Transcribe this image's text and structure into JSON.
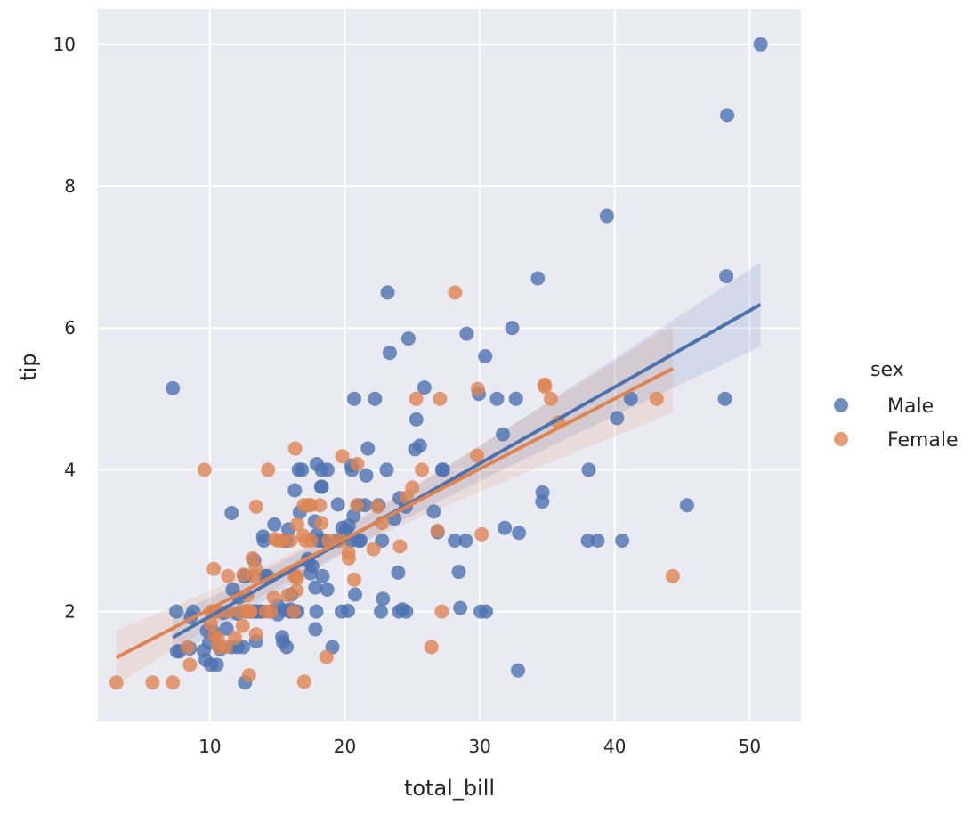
{
  "chart_data": {
    "type": "scatter",
    "xlabel": "total_bill",
    "ylabel": "tip",
    "xlim": [
      1.7,
      53.8
    ],
    "ylim": [
      0.45,
      10.5
    ],
    "xticks": [
      10,
      20,
      30,
      40,
      50
    ],
    "yticks": [
      2,
      4,
      6,
      8,
      10
    ],
    "grid": true,
    "legend": {
      "title": "sex",
      "placement": "right"
    },
    "regression": {
      "show_line": true,
      "confidence_interval": 95
    },
    "colors": {
      "background": "#eaeaf2",
      "grid": "#ffffff"
    },
    "series": [
      {
        "name": "Male",
        "color": "#4c72b0",
        "points": [
          [
            10.34,
            1.66
          ],
          [
            21.01,
            3.5
          ],
          [
            23.68,
            3.31
          ],
          [
            25.29,
            4.71
          ],
          [
            8.77,
            2.0
          ],
          [
            26.88,
            3.12
          ],
          [
            15.04,
            1.96
          ],
          [
            14.78,
            3.23
          ],
          [
            10.27,
            1.71
          ],
          [
            15.42,
            1.57
          ],
          [
            18.43,
            3.0
          ],
          [
            21.58,
            3.92
          ],
          [
            16.29,
            3.71
          ],
          [
            20.65,
            3.35
          ],
          [
            17.92,
            4.08
          ],
          [
            39.42,
            7.58
          ],
          [
            19.82,
            3.18
          ],
          [
            17.81,
            2.34
          ],
          [
            13.37,
            2.0
          ],
          [
            12.69,
            2.0
          ],
          [
            21.7,
            4.3
          ],
          [
            9.55,
            1.45
          ],
          [
            18.35,
            2.5
          ],
          [
            17.78,
            3.27
          ],
          [
            24.06,
            3.6
          ],
          [
            16.31,
            2.0
          ],
          [
            18.69,
            2.31
          ],
          [
            31.27,
            5.0
          ],
          [
            16.04,
            2.24
          ],
          [
            17.46,
            2.54
          ],
          [
            13.94,
            3.06
          ],
          [
            9.68,
            1.32
          ],
          [
            30.4,
            5.6
          ],
          [
            18.29,
            3.0
          ],
          [
            22.23,
            5.0
          ],
          [
            32.4,
            6.0
          ],
          [
            28.55,
            2.05
          ],
          [
            18.04,
            3.0
          ],
          [
            12.54,
            2.5
          ],
          [
            9.94,
            1.56
          ],
          [
            25.56,
            4.34
          ],
          [
            19.49,
            3.51
          ],
          [
            38.01,
            3.0
          ],
          [
            11.24,
            1.76
          ],
          [
            48.27,
            6.73
          ],
          [
            20.29,
            3.21
          ],
          [
            13.81,
            2.0
          ],
          [
            11.02,
            1.98
          ],
          [
            18.29,
            3.76
          ],
          [
            17.59,
            2.64
          ],
          [
            20.08,
            3.15
          ],
          [
            20.23,
            2.01
          ],
          [
            15.01,
            2.09
          ],
          [
            12.02,
            1.97
          ],
          [
            10.51,
            1.25
          ],
          [
            17.92,
            3.08
          ],
          [
            27.2,
            4.0
          ],
          [
            22.76,
            3.0
          ],
          [
            17.29,
            2.71
          ],
          [
            19.44,
            3.0
          ],
          [
            16.66,
            3.4
          ],
          [
            32.68,
            5.0
          ],
          [
            15.98,
            2.03
          ],
          [
            13.03,
            2.0
          ],
          [
            18.28,
            4.0
          ],
          [
            24.71,
            5.85
          ],
          [
            21.16,
            3.0
          ],
          [
            28.97,
            3.0
          ],
          [
            22.49,
            3.5
          ],
          [
            40.17,
            4.73
          ],
          [
            27.28,
            4.0
          ],
          [
            12.03,
            1.5
          ],
          [
            21.01,
            3.0
          ],
          [
            12.46,
            1.5
          ],
          [
            15.36,
            1.64
          ],
          [
            20.49,
            4.06
          ],
          [
            25.21,
            4.29
          ],
          [
            18.24,
            3.76
          ],
          [
            14.0,
            3.0
          ],
          [
            38.07,
            4.0
          ],
          [
            23.95,
            2.55
          ],
          [
            29.93,
            5.07
          ],
          [
            11.69,
            2.31
          ],
          [
            14.26,
            2.5
          ],
          [
            15.95,
            2.0
          ],
          [
            8.52,
            1.48
          ],
          [
            22.82,
            2.18
          ],
          [
            19.08,
            1.5
          ],
          [
            16.0,
            2.0
          ],
          [
            34.3,
            6.7
          ],
          [
            41.19,
            5.0
          ],
          [
            9.78,
            1.73
          ],
          [
            7.51,
            2.0
          ],
          [
            14.07,
            2.5
          ],
          [
            13.13,
            2.0
          ],
          [
            17.26,
            2.74
          ],
          [
            24.55,
            2.0
          ],
          [
            19.77,
            2.0
          ],
          [
            48.17,
            5.0
          ],
          [
            16.49,
            2.0
          ],
          [
            21.5,
            3.5
          ],
          [
            12.66,
            2.5
          ],
          [
            13.81,
            2.0
          ],
          [
            24.52,
            3.48
          ],
          [
            20.76,
            2.24
          ],
          [
            31.71,
            4.5
          ],
          [
            50.81,
            10.0
          ],
          [
            15.81,
            3.16
          ],
          [
            7.25,
            5.15
          ],
          [
            31.85,
            3.18
          ],
          [
            16.82,
            4.0
          ],
          [
            32.9,
            3.11
          ],
          [
            17.89,
            2.0
          ],
          [
            14.48,
            2.0
          ],
          [
            34.63,
            3.55
          ],
          [
            34.65,
            3.68
          ],
          [
            23.33,
            5.65
          ],
          [
            45.35,
            3.5
          ],
          [
            23.17,
            6.5
          ],
          [
            40.55,
            3.0
          ],
          [
            20.69,
            5.0
          ],
          [
            30.46,
            2.0
          ],
          [
            23.1,
            4.0
          ],
          [
            15.69,
            1.5
          ],
          [
            28.44,
            2.56
          ],
          [
            15.48,
            2.02
          ],
          [
            16.58,
            4.0
          ],
          [
            7.56,
            1.44
          ],
          [
            10.34,
            2.0
          ],
          [
            13.51,
            2.0
          ],
          [
            18.71,
            4.0
          ],
          [
            20.53,
            4.0
          ],
          [
            26.59,
            3.41
          ],
          [
            38.73,
            3.0
          ],
          [
            24.27,
            2.03
          ],
          [
            30.06,
            2.0
          ],
          [
            25.89,
            5.16
          ],
          [
            48.33,
            9.0
          ],
          [
            28.15,
            3.0
          ],
          [
            11.59,
            1.5
          ],
          [
            7.74,
            1.44
          ],
          [
            12.16,
            2.2
          ],
          [
            8.58,
            1.92
          ],
          [
            13.42,
            1.58
          ],
          [
            20.45,
            3.0
          ],
          [
            13.28,
            2.72
          ],
          [
            24.01,
            2.0
          ],
          [
            15.69,
            3.0
          ],
          [
            11.61,
            3.39
          ],
          [
            10.77,
            1.47
          ],
          [
            15.53,
            3.0
          ],
          [
            10.07,
            1.25
          ],
          [
            12.6,
            1.0
          ],
          [
            32.83,
            1.17
          ],
          [
            29.03,
            5.92
          ],
          [
            22.67,
            2.0
          ],
          [
            17.82,
            1.75
          ]
        ]
      },
      {
        "name": "Female",
        "color": "#dd8452",
        "points": [
          [
            16.99,
            1.01
          ],
          [
            24.59,
            3.61
          ],
          [
            35.26,
            5.0
          ],
          [
            14.83,
            3.02
          ],
          [
            10.33,
            1.67
          ],
          [
            16.97,
            3.5
          ],
          [
            20.29,
            2.75
          ],
          [
            15.77,
            2.23
          ],
          [
            19.65,
            3.0
          ],
          [
            15.06,
            3.0
          ],
          [
            20.69,
            2.45
          ],
          [
            16.93,
            3.07
          ],
          [
            10.29,
            2.6
          ],
          [
            34.81,
            5.2
          ],
          [
            26.41,
            1.5
          ],
          [
            16.45,
            2.47
          ],
          [
            3.07,
            1.0
          ],
          [
            17.07,
            3.0
          ],
          [
            26.86,
            3.14
          ],
          [
            25.28,
            5.0
          ],
          [
            14.73,
            2.2
          ],
          [
            10.07,
            1.83
          ],
          [
            34.83,
            5.17
          ],
          [
            5.75,
            1.0
          ],
          [
            16.32,
            4.3
          ],
          [
            22.75,
            3.25
          ],
          [
            11.35,
            2.5
          ],
          [
            15.38,
            3.0
          ],
          [
            44.3,
            2.5
          ],
          [
            22.42,
            3.48
          ],
          [
            20.92,
            4.08
          ],
          [
            14.31,
            4.0
          ],
          [
            7.25,
            1.0
          ],
          [
            25.71,
            4.0
          ],
          [
            17.31,
            3.5
          ],
          [
            10.65,
            1.5
          ],
          [
            12.43,
            1.8
          ],
          [
            24.08,
            2.92
          ],
          [
            13.42,
            1.68
          ],
          [
            12.48,
            2.52
          ],
          [
            29.8,
            4.2
          ],
          [
            14.52,
            2.0
          ],
          [
            11.38,
            2.0
          ],
          [
            20.27,
            2.83
          ],
          [
            11.17,
            1.5
          ],
          [
            12.26,
            2.0
          ],
          [
            18.26,
            3.25
          ],
          [
            8.51,
            1.25
          ],
          [
            10.33,
            2.0
          ],
          [
            14.15,
            2.0
          ],
          [
            13.16,
            2.75
          ],
          [
            17.47,
            3.5
          ],
          [
            27.05,
            5.0
          ],
          [
            16.43,
            2.3
          ],
          [
            8.35,
            1.5
          ],
          [
            18.64,
            1.36
          ],
          [
            11.87,
            1.63
          ],
          [
            29.85,
            5.14
          ],
          [
            25.0,
            3.75
          ],
          [
            13.39,
            2.61
          ],
          [
            16.21,
            2.0
          ],
          [
            17.51,
            3.0
          ],
          [
            10.59,
            1.61
          ],
          [
            10.63,
            2.0
          ],
          [
            9.6,
            4.0
          ],
          [
            20.9,
            3.5
          ],
          [
            18.15,
            3.5
          ],
          [
            19.81,
            4.19
          ],
          [
            43.11,
            5.0
          ],
          [
            13.0,
            2.0
          ],
          [
            12.74,
            2.01
          ],
          [
            13.0,
            2.0
          ],
          [
            16.4,
            2.5
          ],
          [
            16.47,
            3.23
          ],
          [
            12.76,
            2.23
          ],
          [
            13.27,
            2.5
          ],
          [
            28.17,
            6.5
          ],
          [
            12.9,
            1.1
          ],
          [
            30.14,
            3.09
          ],
          [
            13.42,
            3.48
          ],
          [
            15.98,
            3.0
          ],
          [
            16.27,
            2.5
          ],
          [
            10.09,
            2.0
          ],
          [
            22.12,
            2.88
          ],
          [
            35.83,
            4.67
          ],
          [
            27.18,
            2.0
          ],
          [
            18.78,
            3.0
          ]
        ]
      }
    ]
  }
}
